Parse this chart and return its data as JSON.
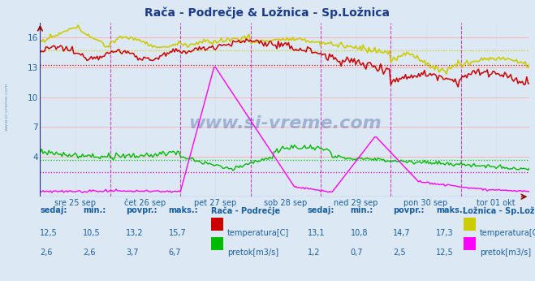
{
  "title": "Rača - Podrečje & Ložnica - Sp.Ložnica",
  "title_color": "#1a3a8c",
  "bg_color": "#dce8f4",
  "plot_bg_color": "#dce8f4",
  "x_labels": [
    "sre 25 sep",
    "čet 26 sep",
    "pet 27 sep",
    "sob 28 sep",
    "ned 29 sep",
    "pon 30 sep",
    "tor 01 okt"
  ],
  "y_ticks": [
    4,
    7,
    10,
    13,
    16
  ],
  "y_min": 0,
  "y_max": 17.5,
  "watermark": "www.si-vreme.com",
  "hline_colors": {
    "raca_temp_avg": "#cc0000",
    "raca_flow_avg": "#00cc00",
    "loznica_temp_avg": "#cccc00",
    "loznica_flow_avg": "#cc00cc"
  },
  "hline_values": {
    "raca_temp_avg": 13.2,
    "raca_flow_avg": 3.7,
    "loznica_temp_avg": 14.7,
    "loznica_flow_avg": 2.5
  },
  "n_points": 336,
  "label_color": "#1a5fa0",
  "vline_color": "#cc44cc",
  "grid_line_color": "#cccccc",
  "h_grid_color": "#ffaaaa",
  "raca_temp_color": "#cc0000",
  "raca_flow_color": "#00bb00",
  "loznica_temp_color": "#cccc00",
  "loznica_flow_color": "#ff00ff",
  "axis_color": "#2222aa",
  "arrow_color": "#990000"
}
